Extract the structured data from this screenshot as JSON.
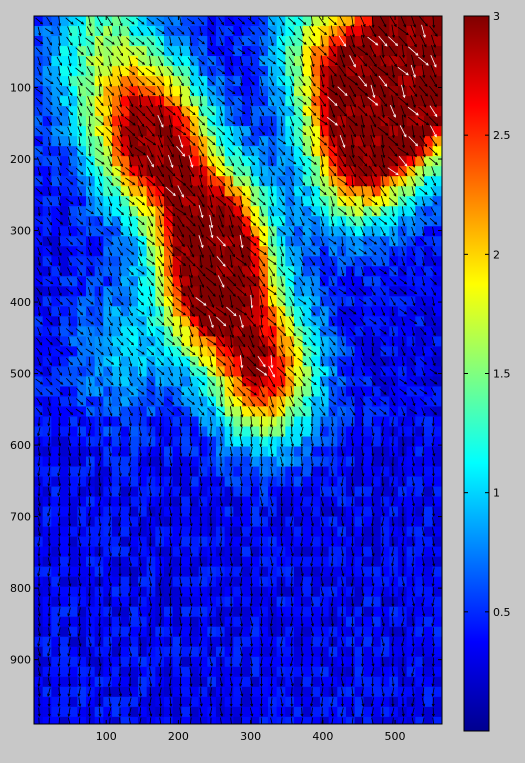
{
  "chart_data": {
    "type": "heatmap",
    "title": "",
    "xlabel": "",
    "ylabel": "",
    "overlay": "quiver",
    "colormap": "jet",
    "xlim": [
      0,
      565
    ],
    "ylim": [
      990,
      0
    ],
    "x_ticks": [
      100,
      200,
      300,
      400,
      500
    ],
    "y_ticks": [
      100,
      200,
      300,
      400,
      500,
      600,
      700,
      800,
      900
    ],
    "colorbar": {
      "range": [
        0,
        3
      ],
      "ticks": [
        0.5,
        1,
        1.5,
        2,
        2.5,
        3
      ],
      "tick_labels": [
        "0.5",
        "1",
        "1.5",
        "2",
        "2.5",
        "3"
      ]
    },
    "hotspots": [
      {
        "x": 255,
        "y": 380,
        "value": 3.0
      },
      {
        "x": 245,
        "y": 300,
        "value": 2.6
      },
      {
        "x": 320,
        "y": 500,
        "value": 2.6
      },
      {
        "x": 175,
        "y": 190,
        "value": 2.3
      },
      {
        "x": 150,
        "y": 140,
        "value": 1.6
      },
      {
        "x": 470,
        "y": 120,
        "value": 2.8
      },
      {
        "x": 530,
        "y": 100,
        "value": 2.9
      },
      {
        "x": 450,
        "y": 200,
        "value": 2.2
      },
      {
        "x": 400,
        "y": 50,
        "value": 1.6
      },
      {
        "x": 90,
        "y": 20,
        "value": 1.2
      },
      {
        "x": 550,
        "y": 20,
        "value": 1.3
      },
      {
        "x": 520,
        "y": 40,
        "value": 1.8
      },
      {
        "x": 120,
        "y": 470,
        "value": 0.9
      },
      {
        "x": 80,
        "y": 120,
        "value": 0.7
      }
    ],
    "background_value": 0.35,
    "grid": false
  }
}
